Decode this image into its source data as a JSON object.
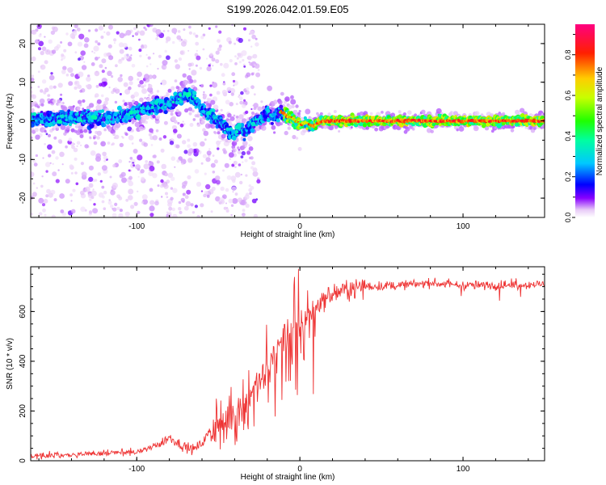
{
  "figure": {
    "title": "S199.2026.042.01.59.E05"
  },
  "chart_data": [
    {
      "type": "heatmap",
      "title": "S199.2026.042.01.59.E05",
      "xlabel": "Height of straight line (km)",
      "ylabel": "Frequency (Hz)",
      "xlim": [
        -165,
        150
      ],
      "ylim": [
        -25,
        25
      ],
      "xticks": [
        -100,
        0,
        100
      ],
      "yticks": [
        -20,
        -10,
        0,
        10,
        20
      ],
      "xtick_labels": [
        "-100",
        "0",
        "100"
      ],
      "ytick_labels": [
        "-20",
        "-10",
        "0",
        "10",
        "20"
      ],
      "colorbar": {
        "label": "Normalized spectral amplitude",
        "range": [
          0,
          0.95
        ],
        "ticks": [
          0,
          0.2,
          0.4,
          0.6,
          0.8
        ],
        "tick_labels": [
          "0.0",
          "0.2",
          "0.4",
          "0.6",
          "0.8"
        ],
        "colormap": [
          "#ffffff",
          "#d9a6f2",
          "#8800ff",
          "#0000ff",
          "#00c8ff",
          "#00ff80",
          "#80ff00",
          "#ffff00",
          "#ff8000",
          "#ff0000",
          "#ff0080"
        ]
      },
      "ridge": {
        "x": [
          -160,
          -140,
          -120,
          -105,
          -95,
          -85,
          -78,
          -70,
          -65,
          -60,
          -55,
          -50,
          -45,
          -40,
          -37,
          -34,
          -30,
          -25,
          -20,
          -15,
          -12,
          -8,
          -4,
          0,
          4,
          8,
          12,
          20,
          40,
          60,
          80,
          100,
          120,
          150
        ],
        "y": [
          0.5,
          0.8,
          0.5,
          1.5,
          3,
          4,
          5,
          7,
          6,
          3,
          1.5,
          0,
          -2,
          -3.5,
          -1.5,
          -3,
          -1,
          0.5,
          2,
          0.5,
          2.5,
          1.2,
          0.5,
          -1,
          -0.5,
          -1.5,
          -0.2,
          0,
          0,
          0,
          0,
          0,
          0,
          0
        ],
        "peak_amplitude": 0.9
      }
    },
    {
      "type": "line",
      "xlabel": "Height of straight line (km)",
      "ylabel": "SNR (10 * v/v)",
      "xlim": [
        -165,
        150
      ],
      "ylim": [
        0,
        780
      ],
      "xticks": [
        -100,
        0,
        100
      ],
      "yticks": [
        0,
        200,
        400,
        600
      ],
      "xtick_labels": [
        "-100",
        "0",
        "100"
      ],
      "ytick_labels": [
        "0",
        "200",
        "400",
        "600"
      ],
      "color": "#ee3333",
      "series": [
        {
          "name": "SNR",
          "x": [
            -165,
            -140,
            -120,
            -100,
            -88,
            -80,
            -72,
            -65,
            -60,
            -55,
            -50,
            -45,
            -40,
            -35,
            -30,
            -25,
            -20,
            -15,
            -10,
            -5,
            0,
            5,
            10,
            15,
            20,
            30,
            40,
            60,
            80,
            100,
            120,
            150
          ],
          "y": [
            20,
            25,
            30,
            35,
            60,
            95,
            60,
            45,
            70,
            120,
            160,
            170,
            200,
            220,
            280,
            320,
            370,
            440,
            490,
            520,
            540,
            590,
            620,
            650,
            670,
            690,
            700,
            705,
            715,
            705,
            705,
            710
          ]
        }
      ]
    }
  ]
}
